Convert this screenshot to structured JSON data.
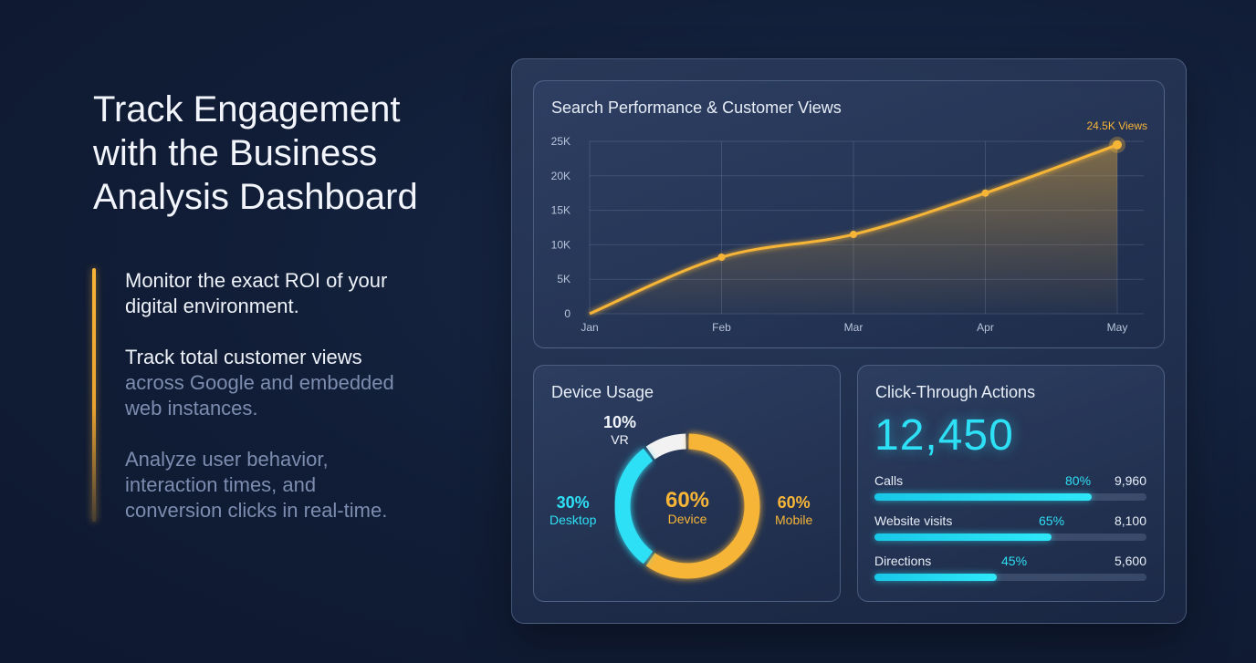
{
  "hero": {
    "headline": [
      "Track Engagement",
      "with the Business",
      "Analysis Dashboard"
    ]
  },
  "points": [
    {
      "white": [
        "Monitor the exact ROI of your",
        "digital environment."
      ],
      "dim": []
    },
    {
      "white": [
        "Track total customer views"
      ],
      "dim": [
        "across Google and embedded",
        "web instances."
      ]
    },
    {
      "white": [],
      "dim": [
        "Analyze user behavior,",
        "interaction times, and",
        "conversion clicks in real-time."
      ]
    }
  ],
  "colors": {
    "accent_orange": "#f7b538",
    "accent_cyan": "#2ee0f5",
    "vr_white": "#f2f2f2"
  },
  "views_chart": {
    "title": "Search Performance & Customer Views",
    "annotation": "24.5K Views",
    "chart_data": {
      "type": "area",
      "title": "Search Performance & Customer Views",
      "categories": [
        "Jan",
        "Feb",
        "Mar",
        "Apr",
        "May"
      ],
      "values": [
        0,
        8200,
        11500,
        17500,
        24500
      ],
      "yticks": [
        "0",
        "5K",
        "10K",
        "15K",
        "20K",
        "25K"
      ],
      "ylim": [
        0,
        25000
      ],
      "grid": true,
      "annotations": [
        {
          "category": "May",
          "text": "24.5K Views"
        }
      ]
    }
  },
  "device_usage": {
    "title": "Device Usage",
    "center_pct": "60%",
    "center_label": "Device",
    "chart_data": {
      "type": "pie",
      "slices": [
        {
          "label": "Mobile",
          "pct_text": "60%",
          "value": 60,
          "color": "#f7b538"
        },
        {
          "label": "Desktop",
          "pct_text": "30%",
          "value": 30,
          "color": "#2ee0f5"
        },
        {
          "label": "VR",
          "pct_text": "10%",
          "value": 10,
          "color": "#f2f2f2"
        }
      ]
    }
  },
  "click_through": {
    "title": "Click-Through Actions",
    "total": "12,450",
    "rows": [
      {
        "label": "Calls",
        "pct_text": "80%",
        "percent": 80,
        "value": "9,960"
      },
      {
        "label": "Website visits",
        "pct_text": "65%",
        "percent": 65,
        "value": "8,100"
      },
      {
        "label": "Directions",
        "pct_text": "45%",
        "percent": 45,
        "value": "5,600"
      }
    ]
  }
}
